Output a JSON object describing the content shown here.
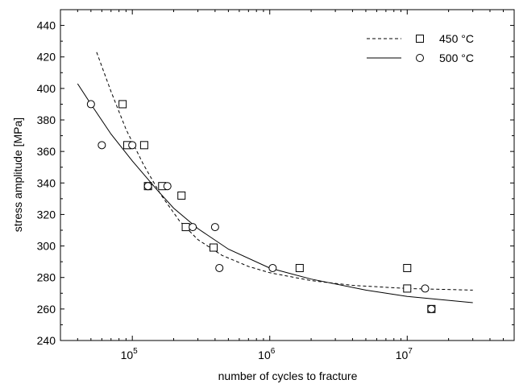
{
  "chart_data": {
    "type": "scatter",
    "xlabel": "number of cycles to fracture",
    "ylabel": "stress amplitude  [MPa]",
    "xscale": "log",
    "xlim": [
      30000,
      60000000
    ],
    "ylim": [
      240,
      450
    ],
    "yticks": [
      240,
      260,
      280,
      300,
      320,
      340,
      360,
      380,
      400,
      420,
      440
    ],
    "ytick_labels": [
      "240",
      "260",
      "280",
      "300",
      "320",
      "340",
      "360",
      "380",
      "400",
      "420",
      "440"
    ],
    "xticks": [
      {
        "value": 100000,
        "base": "10",
        "exp": "5"
      },
      {
        "value": 1000000,
        "base": "10",
        "exp": "6"
      },
      {
        "value": 10000000,
        "base": "10",
        "exp": "7"
      }
    ],
    "legend_position": "top-right",
    "series": [
      {
        "name": "450 °C",
        "marker": "square",
        "line_style": "dashed",
        "points": [
          {
            "x": 85000,
            "y": 390
          },
          {
            "x": 92000,
            "y": 364
          },
          {
            "x": 122000,
            "y": 364
          },
          {
            "x": 130000,
            "y": 338
          },
          {
            "x": 165000,
            "y": 338
          },
          {
            "x": 228000,
            "y": 332
          },
          {
            "x": 245000,
            "y": 312
          },
          {
            "x": 390000,
            "y": 299
          },
          {
            "x": 1650000,
            "y": 286
          },
          {
            "x": 10000000,
            "y": 286
          },
          {
            "x": 10000000,
            "y": 273
          },
          {
            "x": 15000000,
            "y": 260
          }
        ],
        "fit_curve": [
          {
            "x": 55000,
            "y": 423
          },
          {
            "x": 70000,
            "y": 398
          },
          {
            "x": 90000,
            "y": 374
          },
          {
            "x": 120000,
            "y": 352
          },
          {
            "x": 160000,
            "y": 333
          },
          {
            "x": 220000,
            "y": 316
          },
          {
            "x": 300000,
            "y": 304
          },
          {
            "x": 450000,
            "y": 294
          },
          {
            "x": 700000,
            "y": 287
          },
          {
            "x": 1000000,
            "y": 283
          },
          {
            "x": 2000000,
            "y": 278
          },
          {
            "x": 4000000,
            "y": 275
          },
          {
            "x": 10000000,
            "y": 273
          },
          {
            "x": 30000000,
            "y": 272
          }
        ]
      },
      {
        "name": "500 °C",
        "marker": "circle",
        "line_style": "solid",
        "points": [
          {
            "x": 50000,
            "y": 390
          },
          {
            "x": 60000,
            "y": 364
          },
          {
            "x": 100000,
            "y": 364
          },
          {
            "x": 130000,
            "y": 338
          },
          {
            "x": 180000,
            "y": 338
          },
          {
            "x": 275000,
            "y": 312
          },
          {
            "x": 400000,
            "y": 312
          },
          {
            "x": 430000,
            "y": 286
          },
          {
            "x": 1050000,
            "y": 286
          },
          {
            "x": 13500000,
            "y": 273
          },
          {
            "x": 15000000,
            "y": 260
          }
        ],
        "fit_curve": [
          {
            "x": 40000,
            "y": 403
          },
          {
            "x": 50000,
            "y": 390
          },
          {
            "x": 70000,
            "y": 371
          },
          {
            "x": 100000,
            "y": 354
          },
          {
            "x": 150000,
            "y": 336
          },
          {
            "x": 200000,
            "y": 324
          },
          {
            "x": 300000,
            "y": 311
          },
          {
            "x": 500000,
            "y": 298
          },
          {
            "x": 1000000,
            "y": 286
          },
          {
            "x": 2000000,
            "y": 279
          },
          {
            "x": 5000000,
            "y": 272
          },
          {
            "x": 10000000,
            "y": 268
          },
          {
            "x": 30000000,
            "y": 264
          }
        ]
      }
    ]
  }
}
